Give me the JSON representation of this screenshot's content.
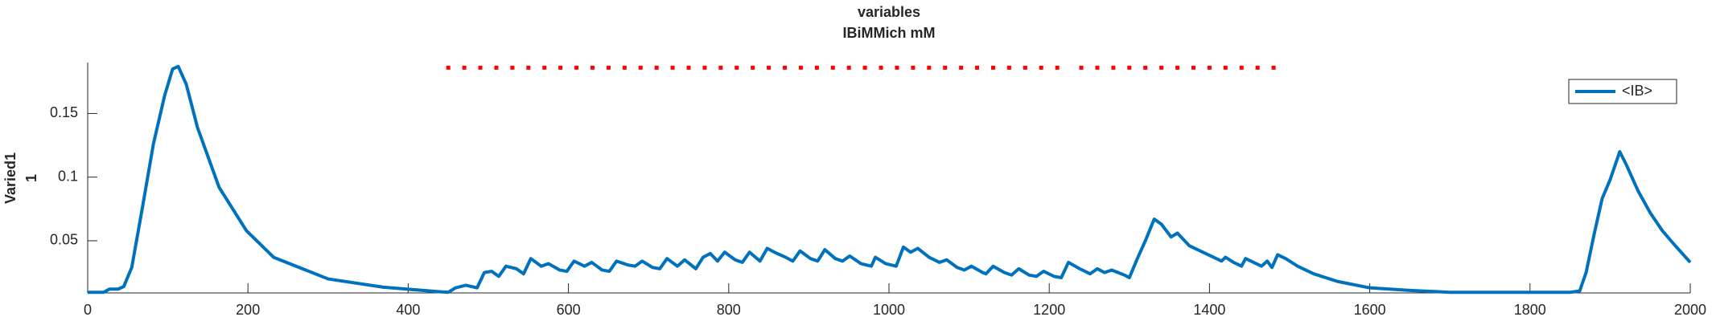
{
  "chart_data": {
    "type": "line",
    "title": "variables",
    "subtitle": "IBiMMich mM",
    "ylabel": "Varied1",
    "ylabel2": "1",
    "x": [
      0,
      20,
      27,
      38,
      45,
      55,
      68,
      82,
      96,
      106,
      113,
      123,
      137,
      164,
      198,
      232,
      300,
      369,
      437,
      450,
      459,
      472,
      486,
      495,
      504,
      513,
      522,
      535,
      544,
      553,
      566,
      575,
      589,
      598,
      607,
      620,
      629,
      642,
      651,
      660,
      674,
      683,
      692,
      705,
      714,
      723,
      736,
      745,
      759,
      768,
      777,
      786,
      795,
      808,
      817,
      826,
      839,
      848,
      857,
      871,
      880,
      889,
      902,
      911,
      920,
      933,
      942,
      951,
      965,
      978,
      983,
      996,
      1009,
      1018,
      1027,
      1036,
      1050,
      1063,
      1072,
      1085,
      1094,
      1103,
      1117,
      1121,
      1130,
      1144,
      1153,
      1162,
      1175,
      1184,
      1193,
      1206,
      1215,
      1224,
      1238,
      1251,
      1260,
      1269,
      1278,
      1294,
      1300,
      1310,
      1320,
      1331,
      1340,
      1352,
      1360,
      1375,
      1385,
      1395,
      1405,
      1415,
      1420,
      1430,
      1440,
      1445,
      1455,
      1465,
      1472,
      1478,
      1485,
      1495,
      1510,
      1530,
      1560,
      1600,
      1650,
      1700,
      1750,
      1800,
      1850,
      1862,
      1870,
      1880,
      1890,
      1900,
      1912,
      1920,
      1935,
      1950,
      1965,
      1980,
      2000
    ],
    "series": [
      {
        "name": "<IB>",
        "color": "#0072bd",
        "values": [
          0.0095,
          0.0095,
          0.012,
          0.012,
          0.014,
          0.029,
          0.075,
          0.126,
          0.164,
          0.185,
          0.187,
          0.173,
          0.139,
          0.092,
          0.058,
          0.037,
          0.02,
          0.0135,
          0.01,
          0.0095,
          0.013,
          0.015,
          0.013,
          0.025,
          0.026,
          0.022,
          0.03,
          0.028,
          0.024,
          0.036,
          0.03,
          0.032,
          0.027,
          0.026,
          0.034,
          0.03,
          0.033,
          0.027,
          0.026,
          0.034,
          0.031,
          0.03,
          0.034,
          0.029,
          0.028,
          0.036,
          0.03,
          0.035,
          0.028,
          0.037,
          0.04,
          0.034,
          0.041,
          0.035,
          0.033,
          0.041,
          0.034,
          0.044,
          0.041,
          0.037,
          0.034,
          0.042,
          0.036,
          0.034,
          0.043,
          0.036,
          0.034,
          0.038,
          0.032,
          0.03,
          0.037,
          0.032,
          0.03,
          0.045,
          0.041,
          0.044,
          0.037,
          0.033,
          0.035,
          0.029,
          0.027,
          0.03,
          0.025,
          0.024,
          0.03,
          0.025,
          0.023,
          0.028,
          0.023,
          0.022,
          0.026,
          0.022,
          0.021,
          0.033,
          0.028,
          0.024,
          0.028,
          0.025,
          0.027,
          0.023,
          0.021,
          0.036,
          0.05,
          0.067,
          0.063,
          0.053,
          0.056,
          0.046,
          0.043,
          0.04,
          0.037,
          0.034,
          0.037,
          0.033,
          0.03,
          0.036,
          0.033,
          0.03,
          0.034,
          0.029,
          0.039,
          0.036,
          0.03,
          0.024,
          0.018,
          0.013,
          0.011,
          0.0095,
          0.0095,
          0.0095,
          0.0095,
          0.0105,
          0.025,
          0.055,
          0.083,
          0.098,
          0.12,
          0.11,
          0.089,
          0.072,
          0.058,
          0.047,
          0.033
        ]
      }
    ],
    "markers": {
      "color": "#ff0000",
      "y": 0.186,
      "x": [
        450,
        470,
        490,
        510,
        530,
        550,
        570,
        590,
        610,
        630,
        650,
        670,
        690,
        710,
        730,
        750,
        770,
        790,
        810,
        830,
        850,
        870,
        890,
        910,
        930,
        950,
        970,
        990,
        1010,
        1030,
        1050,
        1070,
        1090,
        1110,
        1130,
        1150,
        1170,
        1190,
        1210,
        1240,
        1260,
        1280,
        1300,
        1320,
        1340,
        1360,
        1380,
        1400,
        1420,
        1440,
        1460,
        1480
      ]
    },
    "xlim": [
      0,
      2000
    ],
    "xticks": [
      0,
      200,
      400,
      600,
      800,
      1000,
      1200,
      1400,
      1600,
      1800,
      2000
    ],
    "ylim": [
      0.009,
      0.19
    ],
    "yticks": [
      0.05,
      0.1,
      0.15
    ],
    "legend": "upper right"
  }
}
